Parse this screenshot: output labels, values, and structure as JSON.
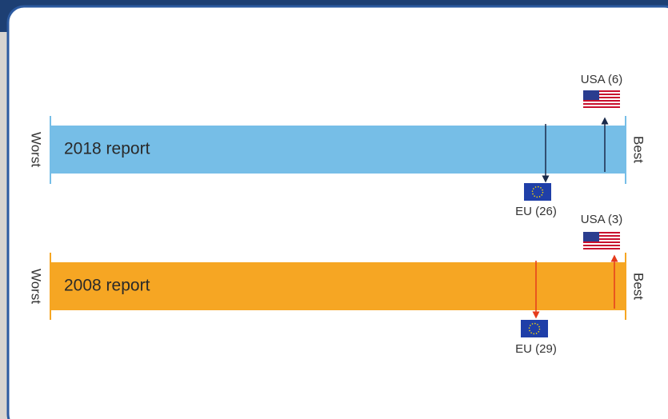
{
  "panels": [
    {
      "title": "2018 report",
      "left": "Worst",
      "right": "Best",
      "eu": "EU (26)",
      "usa": "USA (6)"
    },
    {
      "title": "2008 report",
      "left": "Worst",
      "right": "Best",
      "eu": "EU (29)",
      "usa": "USA (3)"
    }
  ]
}
